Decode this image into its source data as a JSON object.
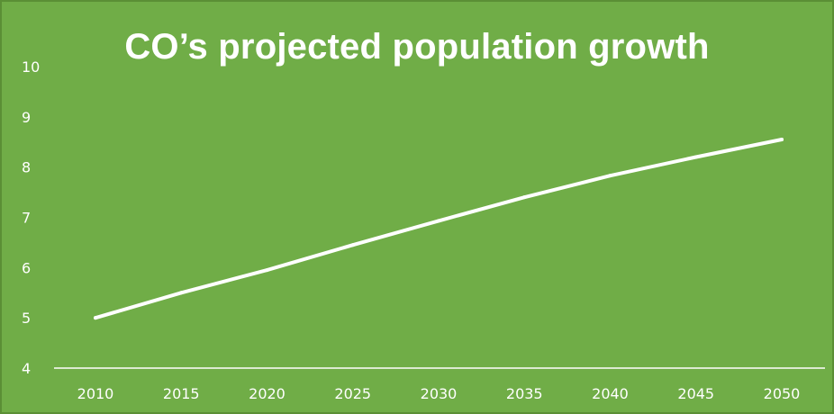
{
  "chart_data": {
    "type": "line",
    "title": "CO’s projected population growth",
    "xlabel": "",
    "ylabel": "",
    "categories": [
      "2010",
      "2015",
      "2020",
      "2025",
      "2030",
      "2035",
      "2040",
      "2045",
      "2050"
    ],
    "series": [
      {
        "values": [
          5.0,
          5.5,
          5.95,
          6.45,
          6.93,
          7.4,
          7.83,
          8.2,
          8.55
        ]
      }
    ],
    "ylim": [
      4,
      10
    ],
    "yticks": [
      4,
      5,
      6,
      7,
      8,
      9,
      10
    ],
    "grid": false,
    "legend": "none",
    "colors": {
      "background": "#70ad47",
      "line": "#ffffff",
      "text": "#ffffff",
      "axis": "#ffffff"
    }
  }
}
